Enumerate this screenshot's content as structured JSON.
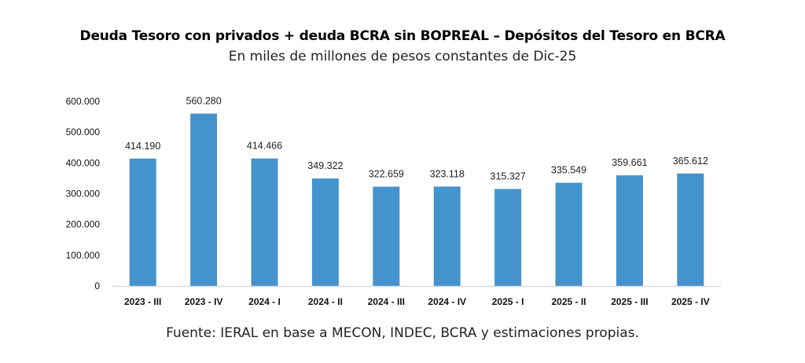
{
  "chart_data": {
    "type": "bar",
    "title": "Deuda Tesoro con privados + deuda BCRA sin BOPREAL – Depósitos del Tesoro en BCRA",
    "subtitle": "En miles de millones de pesos constantes de Dic-25",
    "source": "Fuente: IERAL en base a MECON, INDEC, BCRA y estimaciones propias.",
    "xlabel": "",
    "ylabel": "",
    "ylim": [
      0,
      600000
    ],
    "yticks": [
      0,
      100000,
      200000,
      300000,
      400000,
      500000,
      600000
    ],
    "ytick_labels": [
      "0",
      "100.000",
      "200.000",
      "300.000",
      "400.000",
      "500.000",
      "600.000"
    ],
    "grid": false,
    "legend": "none",
    "categories": [
      "2023 - III",
      "2023 - IV",
      "2024 - I",
      "2024 - II",
      "2024 - III",
      "2024 - IV",
      "2025 - I",
      "2025 - II",
      "2025 - III",
      "2025 - IV"
    ],
    "values": [
      414190,
      560280,
      414466,
      349322,
      322659,
      323118,
      315327,
      335549,
      359661,
      365612
    ],
    "data_labels": [
      "414.190",
      "560.280",
      "414.466",
      "349.322",
      "322.659",
      "323.118",
      "315.327",
      "335.549",
      "359.661",
      "365.612"
    ],
    "colors": {
      "bar": "#4593CD",
      "axis": "#D9D9D9"
    }
  }
}
